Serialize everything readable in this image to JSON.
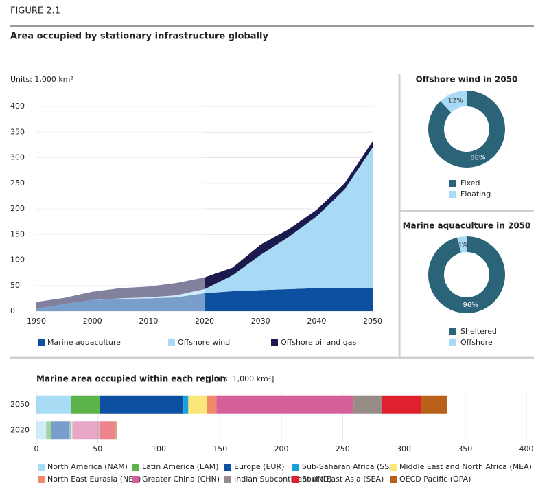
{
  "header": {
    "figure": "FIGURE 2.1",
    "title": "Area occupied by stationary infrastructure globally"
  },
  "chart_data": [
    {
      "type": "area",
      "stacked": true,
      "y_label": "Units: 1,000 km²",
      "x": [
        1990,
        1995,
        2000,
        2005,
        2010,
        2015,
        2020,
        2025,
        2030,
        2035,
        2040,
        2045,
        2050
      ],
      "series": [
        {
          "name": "Marine aquaculture",
          "color": "#0d4fa0",
          "values": [
            5,
            14,
            22,
            24,
            25,
            27,
            35,
            39,
            41,
            43,
            45,
            46,
            45
          ]
        },
        {
          "name": "Offshore wind",
          "color": "#a8daf5",
          "values": [
            0,
            0,
            0,
            1,
            2,
            4,
            8,
            31,
            69,
            102,
            140,
            192,
            275
          ]
        },
        {
          "name": "Offshore oil and gas",
          "color": "#1b1a4f",
          "values": [
            13,
            12,
            16,
            20,
            21,
            24,
            23,
            15,
            20,
            15,
            13,
            12,
            12
          ]
        }
      ],
      "xlim": [
        1990,
        2050
      ],
      "xticks": [
        1990,
        2000,
        2010,
        2020,
        2030,
        2040,
        2050
      ],
      "ylim": [
        0,
        400
      ],
      "yticks": [
        0,
        50,
        100,
        150,
        200,
        250,
        300,
        350,
        400
      ],
      "grid": true,
      "legend": "bottom"
    },
    {
      "type": "donut",
      "title": "Offshore wind in 2050",
      "categories": [
        "Fixed",
        "Floating"
      ],
      "values": [
        88,
        12
      ],
      "value_labels": [
        "88%",
        "12%"
      ],
      "colors": [
        "#2b6478",
        "#a8daf5"
      ]
    },
    {
      "type": "donut",
      "title": "Marine aquaculture in 2050",
      "categories": [
        "Sheltered",
        "Offshore"
      ],
      "values": [
        96,
        4
      ],
      "value_labels": [
        "96%",
        "4%"
      ],
      "colors": [
        "#2b6478",
        "#a8daf5"
      ]
    },
    {
      "type": "bar",
      "orientation": "horizontal",
      "stacked": true,
      "title": "Marine area occupied within each region",
      "subtitle": "[Units: 1,000 km²]",
      "categories": [
        "2050",
        "2020"
      ],
      "series": [
        {
          "name": "North America (NAM)",
          "color": "#a8dcf5",
          "values": [
            28,
            8
          ]
        },
        {
          "name": "Latin America (LAM)",
          "color": "#5cb34a",
          "values": [
            24,
            4
          ]
        },
        {
          "name": "Europe (EUR)",
          "color": "#0d4fa0",
          "values": [
            68,
            15
          ]
        },
        {
          "name": "Sub-Saharan Africa (SSA)",
          "color": "#1aa0dc",
          "values": [
            4,
            1
          ]
        },
        {
          "name": "Middle East and North Africa (MEA)",
          "color": "#fbe67a",
          "values": [
            15,
            1
          ]
        },
        {
          "name": "North East Eurasia (NEE)",
          "color": "#f08a6a",
          "values": [
            8,
            1
          ]
        },
        {
          "name": "Greater China (CHN)",
          "color": "#d4609a",
          "values": [
            112,
            21
          ]
        },
        {
          "name": "Indian Subcontinent (IND)",
          "color": "#968b85",
          "values": [
            23,
            1
          ]
        },
        {
          "name": "South East Asia (SEA)",
          "color": "#e0202f",
          "values": [
            32,
            12
          ]
        },
        {
          "name": "OECD Pacific (OPA)",
          "color": "#b9611b",
          "values": [
            21,
            2
          ]
        }
      ],
      "xlim": [
        0,
        400
      ],
      "xticks": [
        0,
        50,
        100,
        150,
        200,
        250,
        300,
        350,
        400
      ],
      "grid": true,
      "legend": "bottom"
    }
  ]
}
